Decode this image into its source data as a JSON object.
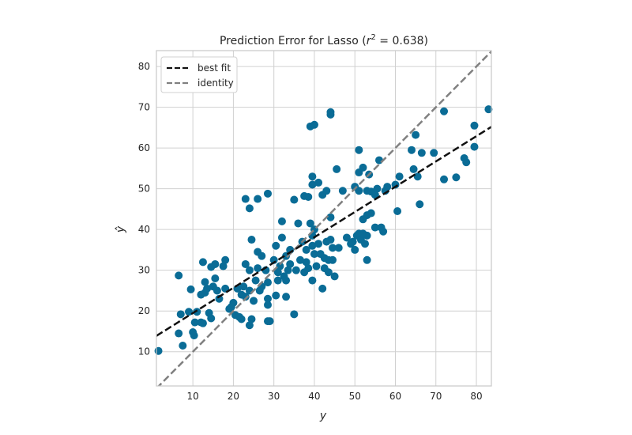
{
  "chart_data": {
    "type": "scatter",
    "title": "Prediction Error for Lasso (r² = 0.638)",
    "title_parts": {
      "prefix": "Prediction Error for Lasso (",
      "r": "r",
      "sup": "2",
      "suffix": " = 0.638)"
    },
    "xlabel": "y",
    "ylabel": "ŷ",
    "xlim": [
      1.0,
      83.7
    ],
    "ylim": [
      1.6,
      83.9
    ],
    "xticks": [
      10,
      20,
      30,
      40,
      50,
      60,
      70,
      80
    ],
    "yticks": [
      10,
      20,
      30,
      40,
      50,
      60,
      70,
      80
    ],
    "grid": true,
    "legend": {
      "placement": "top-left",
      "entries": [
        "best fit",
        "identity"
      ]
    },
    "colors": {
      "points": "#0a6c96",
      "best_fit": "#111111",
      "identity": "#808080",
      "grid": "#d0d0d0",
      "frame": "#c8c8c8"
    },
    "best_fit": {
      "x": [
        1.0,
        83.7
      ],
      "y": [
        13.9,
        65.2
      ]
    },
    "identity": {
      "x": [
        1.0,
        83.7
      ],
      "y": [
        1.0,
        83.7
      ]
    },
    "points": [
      [
        1.5,
        10.2
      ],
      [
        6.5,
        28.7
      ],
      [
        6.5,
        14.5
      ],
      [
        7.5,
        11.5
      ],
      [
        7,
        19.2
      ],
      [
        9.5,
        25.3
      ],
      [
        9,
        19.8
      ],
      [
        10,
        14.8
      ],
      [
        10.3,
        14
      ],
      [
        10.5,
        17.2
      ],
      [
        11,
        19.8
      ],
      [
        12,
        17.2
      ],
      [
        12.5,
        17
      ],
      [
        12,
        24
      ],
      [
        13,
        24.5
      ],
      [
        12.5,
        32
      ],
      [
        13,
        27.1
      ],
      [
        13.5,
        25.5
      ],
      [
        14,
        19.5
      ],
      [
        14.5,
        18.2
      ],
      [
        14.5,
        30.8
      ],
      [
        15,
        26
      ],
      [
        15.5,
        28
      ],
      [
        15.5,
        31.5
      ],
      [
        16,
        25
      ],
      [
        16.5,
        23
      ],
      [
        17.5,
        31
      ],
      [
        18,
        32.5
      ],
      [
        18,
        25.5
      ],
      [
        19,
        20.5
      ],
      [
        19.5,
        21
      ],
      [
        20,
        22
      ],
      [
        20.5,
        19
      ],
      [
        21,
        25.5
      ],
      [
        21.5,
        18.5
      ],
      [
        22,
        24
      ],
      [
        22,
        18
      ],
      [
        22.5,
        26
      ],
      [
        23,
        23.5
      ],
      [
        23,
        47.5
      ],
      [
        23,
        31.5
      ],
      [
        24,
        25
      ],
      [
        24,
        45.2
      ],
      [
        24,
        30
      ],
      [
        24.5,
        37.5
      ],
      [
        24,
        16.5
      ],
      [
        24.5,
        18
      ],
      [
        25,
        22.5
      ],
      [
        25.5,
        27.5
      ],
      [
        26,
        47.5
      ],
      [
        26,
        34.5
      ],
      [
        26,
        30.5
      ],
      [
        26.5,
        25
      ],
      [
        27,
        26
      ],
      [
        27,
        33.5
      ],
      [
        28,
        30
      ],
      [
        28.5,
        23
      ],
      [
        28.5,
        21.5
      ],
      [
        28.5,
        17.5
      ],
      [
        28.5,
        48.8
      ],
      [
        28.5,
        27
      ],
      [
        29,
        17.5
      ],
      [
        30,
        32.5
      ],
      [
        30.5,
        36
      ],
      [
        30.5,
        23.8
      ],
      [
        31,
        29.5
      ],
      [
        31,
        27.5
      ],
      [
        31.5,
        31
      ],
      [
        32,
        42
      ],
      [
        32,
        38
      ],
      [
        32.5,
        28.5
      ],
      [
        33,
        33.5
      ],
      [
        33,
        23.5
      ],
      [
        33,
        27.5
      ],
      [
        33.5,
        30
      ],
      [
        34,
        31.5
      ],
      [
        34,
        35
      ],
      [
        35,
        47.3
      ],
      [
        35,
        19.2
      ],
      [
        35.5,
        30
      ],
      [
        36,
        41.5
      ],
      [
        36.5,
        32.5
      ],
      [
        37,
        37
      ],
      [
        37.5,
        48.2
      ],
      [
        37.5,
        29.5
      ],
      [
        38,
        35
      ],
      [
        38,
        32
      ],
      [
        38.5,
        48
      ],
      [
        38.5,
        30.5
      ],
      [
        39,
        65.3
      ],
      [
        39,
        41.5
      ],
      [
        39.5,
        53
      ],
      [
        39.5,
        51
      ],
      [
        39.5,
        38.5
      ],
      [
        39.5,
        36
      ],
      [
        39.5,
        27.5
      ],
      [
        40,
        65.7
      ],
      [
        40,
        40
      ],
      [
        40,
        34
      ],
      [
        40.5,
        31
      ],
      [
        41,
        51.5
      ],
      [
        41,
        36.5
      ],
      [
        41.5,
        34
      ],
      [
        42,
        48.5
      ],
      [
        42,
        25.5
      ],
      [
        42.5,
        33
      ],
      [
        42.5,
        30.5
      ],
      [
        43,
        49.5
      ],
      [
        43,
        37
      ],
      [
        43.5,
        32.5
      ],
      [
        43.5,
        29.5
      ],
      [
        44,
        68.8
      ],
      [
        44,
        68.2
      ],
      [
        44,
        43
      ],
      [
        44,
        37.5
      ],
      [
        44.5,
        35.5
      ],
      [
        44.5,
        32.5
      ],
      [
        45,
        28.5
      ],
      [
        45.5,
        54.8
      ],
      [
        46,
        35.5
      ],
      [
        47,
        49.5
      ],
      [
        48,
        38
      ],
      [
        49,
        36.5
      ],
      [
        49.5,
        37
      ],
      [
        50,
        50.5
      ],
      [
        50,
        35
      ],
      [
        50.5,
        38.5
      ],
      [
        51,
        59.5
      ],
      [
        51,
        54
      ],
      [
        51,
        49.5
      ],
      [
        51,
        39
      ],
      [
        51.5,
        37.5
      ],
      [
        52,
        55.2
      ],
      [
        52,
        42.5
      ],
      [
        52,
        39
      ],
      [
        52.5,
        36.5
      ],
      [
        53,
        49.5
      ],
      [
        53,
        43.5
      ],
      [
        53,
        38.5
      ],
      [
        53,
        32.5
      ],
      [
        53.5,
        53.5
      ],
      [
        54,
        49.3
      ],
      [
        54,
        44
      ],
      [
        55,
        48.5
      ],
      [
        55,
        40.5
      ],
      [
        55.5,
        50
      ],
      [
        56,
        57
      ],
      [
        56.5,
        40.5
      ],
      [
        57,
        39.5
      ],
      [
        57.5,
        49.5
      ],
      [
        58,
        50.5
      ],
      [
        60,
        51
      ],
      [
        60.5,
        44.5
      ],
      [
        61,
        53
      ],
      [
        64,
        59.5
      ],
      [
        64.5,
        54.8
      ],
      [
        65,
        63.2
      ],
      [
        65.5,
        53
      ],
      [
        66,
        46.2
      ],
      [
        66.5,
        58.8
      ],
      [
        69.5,
        58.8
      ],
      [
        72,
        69
      ],
      [
        72,
        52.3
      ],
      [
        75,
        52.8
      ],
      [
        77,
        57.5
      ],
      [
        77.5,
        56.5
      ],
      [
        79.5,
        65.5
      ],
      [
        79.5,
        60.3
      ],
      [
        83,
        69.5
      ]
    ]
  }
}
